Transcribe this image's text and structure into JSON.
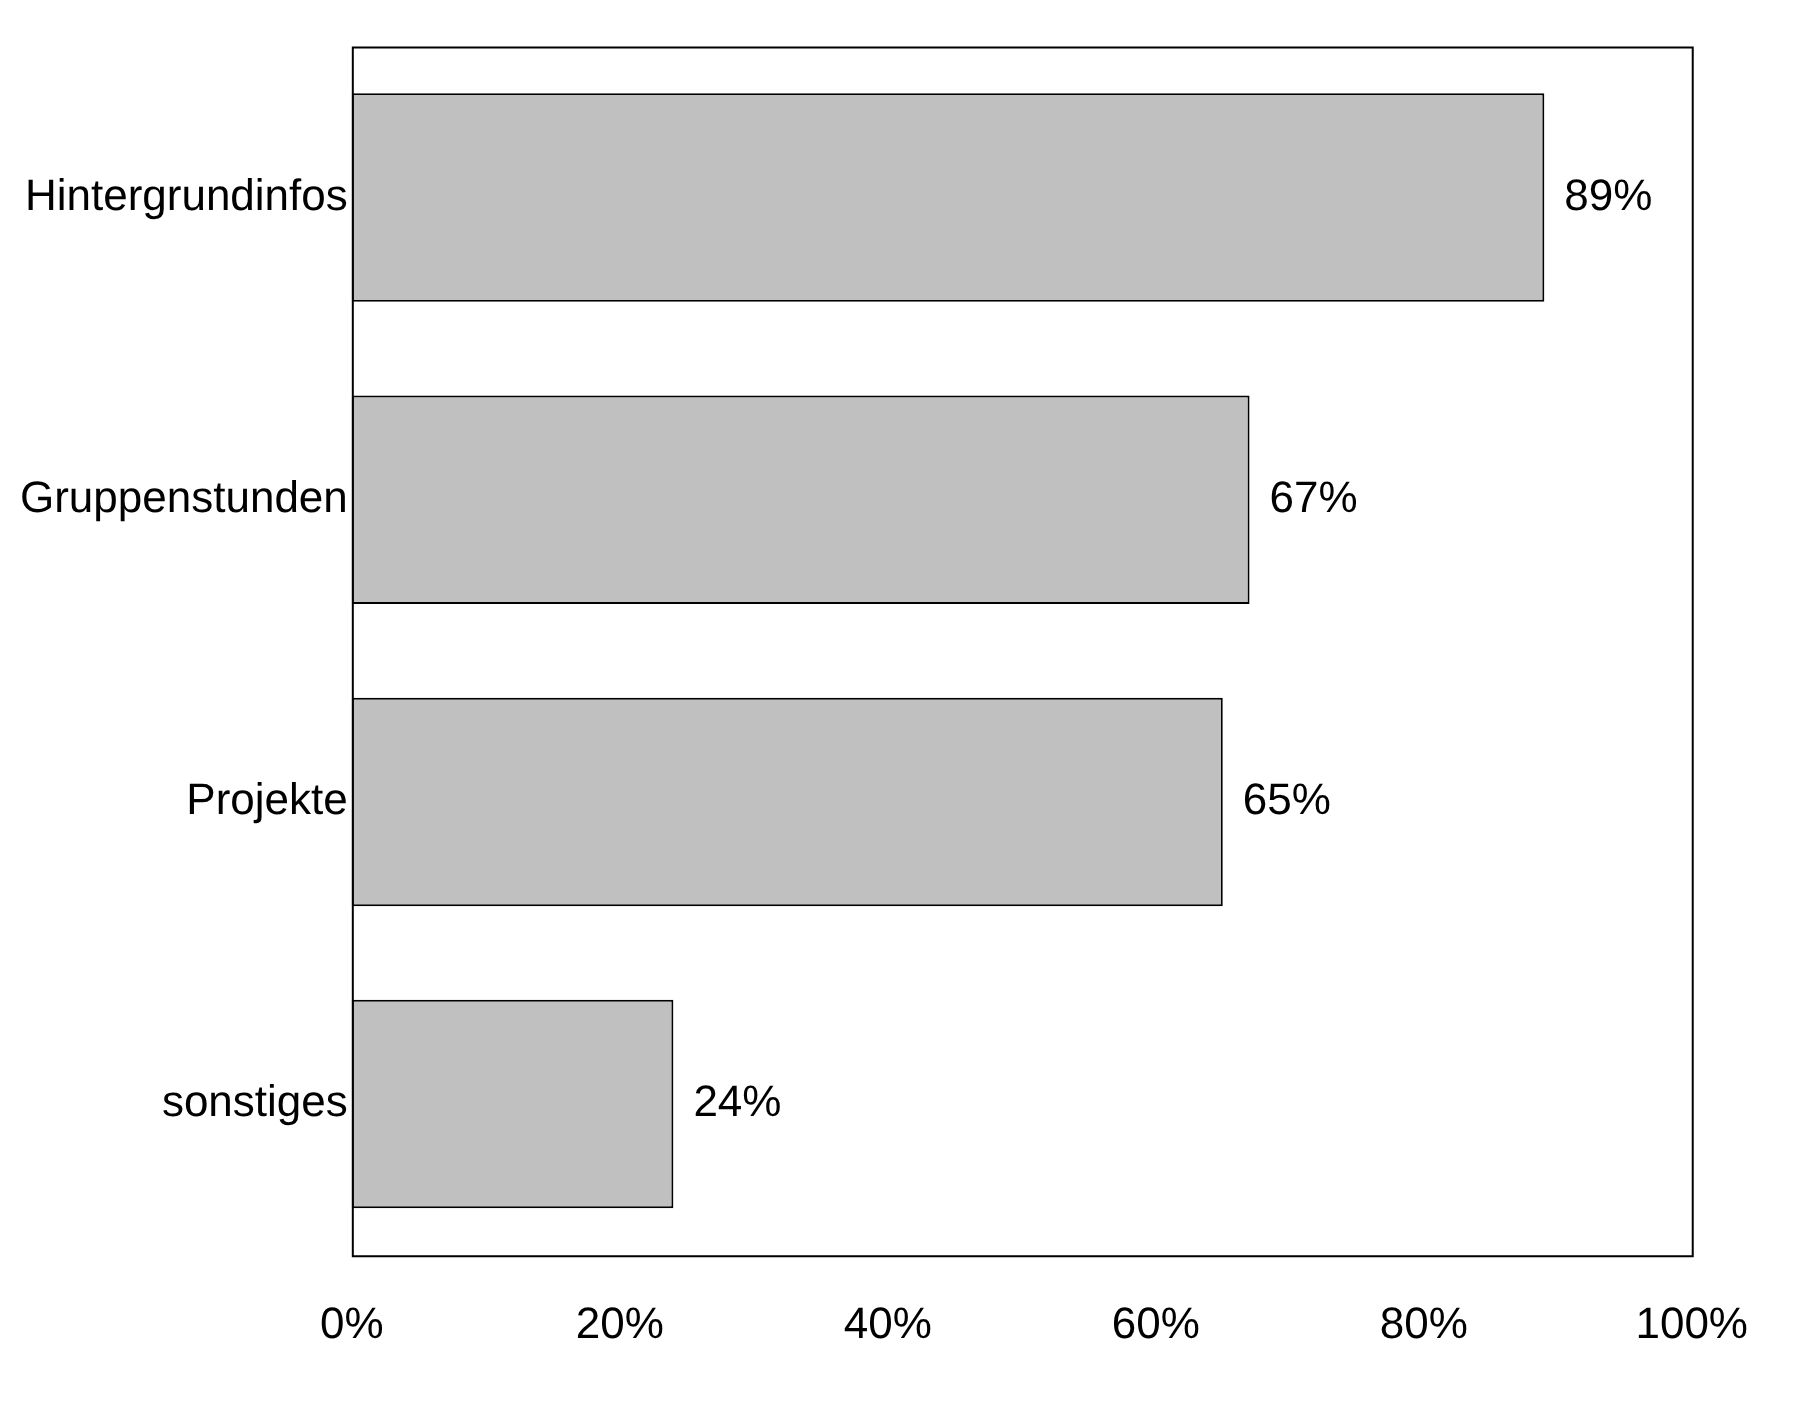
{
  "chart_data": {
    "type": "bar",
    "orientation": "horizontal",
    "categories": [
      "Hintergrundinfos",
      "Gruppenstunden",
      "Projekte",
      "sonstiges"
    ],
    "values": [
      89,
      67,
      65,
      24
    ],
    "color": "#c0c0c0",
    "value_labels": [
      "89%",
      "67%",
      "65%",
      "24%"
    ],
    "xlim": [
      0,
      100
    ],
    "xticks": [
      {
        "value": 0,
        "label": "0%"
      },
      {
        "value": 20,
        "label": "20%"
      },
      {
        "value": 40,
        "label": "40%"
      },
      {
        "value": 60,
        "label": "60%"
      },
      {
        "value": 80,
        "label": "80%"
      },
      {
        "value": 100,
        "label": "100%"
      }
    ],
    "grid": false,
    "legend": false
  }
}
